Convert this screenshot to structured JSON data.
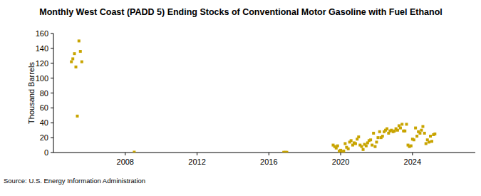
{
  "chart_data": {
    "type": "scatter",
    "title": "Monthly West Coast (PADD 5) Ending Stocks of Conventional Motor Gasoline with Fuel Ethanol",
    "y_label": "Thousand Barrels",
    "source": "Source: U.S. Energy Information Administration",
    "color": "#c8a400",
    "marker": "square",
    "grid": false,
    "xlim": [
      2004,
      2027.5
    ],
    "xticks": [
      2008,
      2012,
      2016,
      2020,
      2024
    ],
    "ylim": [
      0,
      160
    ],
    "yticks": [
      0,
      20,
      40,
      60,
      80,
      100,
      120,
      140,
      160
    ],
    "x": [
      2005.0,
      2005.08,
      2005.17,
      2005.25,
      2005.33,
      2005.42,
      2005.5,
      2005.58,
      2008.5,
      2016.83,
      2016.92,
      2017.0,
      2019.58,
      2019.67,
      2019.75,
      2019.83,
      2019.92,
      2020.0,
      2020.08,
      2020.17,
      2020.25,
      2020.33,
      2020.42,
      2020.5,
      2020.58,
      2020.67,
      2020.75,
      2020.83,
      2020.92,
      2021.0,
      2021.08,
      2021.17,
      2021.25,
      2021.33,
      2021.42,
      2021.5,
      2021.58,
      2021.67,
      2021.75,
      2021.83,
      2021.92,
      2022.0,
      2022.08,
      2022.17,
      2022.25,
      2022.33,
      2022.42,
      2022.5,
      2022.58,
      2022.67,
      2022.75,
      2022.83,
      2022.92,
      2023.0,
      2023.08,
      2023.17,
      2023.25,
      2023.33,
      2023.42,
      2023.5,
      2023.58,
      2023.67,
      2023.75,
      2023.83,
      2023.92,
      2024.0,
      2024.08,
      2024.17,
      2024.25,
      2024.33,
      2024.42,
      2024.5,
      2024.58,
      2024.67,
      2024.75,
      2024.83,
      2024.92,
      2025.0,
      2025.08,
      2025.17,
      2025.25
    ],
    "values": [
      122,
      126,
      133,
      115,
      49,
      150,
      136,
      122,
      0.5,
      0.3,
      0.3,
      0.3,
      10,
      8,
      6,
      9,
      2,
      3,
      1,
      2,
      12,
      7,
      5,
      14,
      16,
      10,
      13,
      12,
      18,
      21,
      10,
      8,
      4,
      11,
      9,
      13,
      16,
      17,
      10,
      26,
      8,
      14,
      20,
      28,
      20,
      22,
      28,
      30,
      32,
      26,
      29,
      30,
      28,
      29,
      32,
      30,
      36,
      33,
      38,
      29,
      29,
      38,
      10,
      8,
      9,
      18,
      17,
      33,
      22,
      28,
      26,
      30,
      35,
      26,
      12,
      17,
      14,
      22,
      15,
      24,
      25
    ]
  }
}
